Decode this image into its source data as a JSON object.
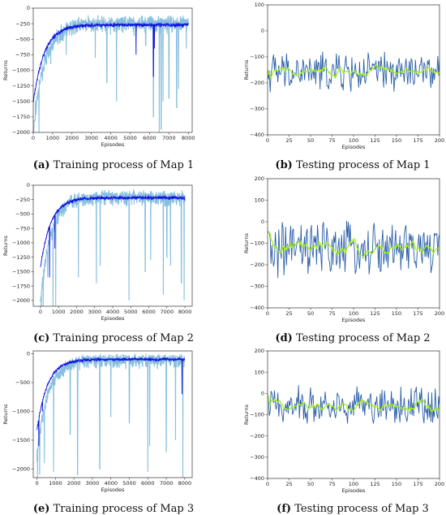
{
  "chart_data": [
    {
      "type": "line",
      "caption_letter": "(a)",
      "caption_text": " Training process of Map 1",
      "xlabel": "Episodes",
      "ylabel": "Returns",
      "xlim": [
        0,
        8200
      ],
      "ylim": [
        -2000,
        0
      ],
      "xticks": [
        0,
        1000,
        2000,
        3000,
        4000,
        5000,
        6000,
        7000,
        8000
      ],
      "yticks": [
        0,
        -250,
        -500,
        -750,
        -1000,
        -1250,
        -1500,
        -1750,
        -2000
      ],
      "episodes": 8000,
      "series": [
        {
          "role": "raw",
          "color": "#87bfe0",
          "start": -1900,
          "end": -150,
          "noise": 160,
          "dips": [
            [
              30,
              -1900
            ],
            [
              120,
              -1500
            ],
            [
              300,
              -2000
            ],
            [
              650,
              -900
            ],
            [
              900,
              -900
            ],
            [
              1700,
              -750
            ],
            [
              3200,
              -800
            ],
            [
              3800,
              -1200
            ],
            [
              4300,
              -1500
            ],
            [
              5200,
              -450
            ],
            [
              5800,
              -600
            ],
            [
              6200,
              -1750
            ],
            [
              6500,
              -2000
            ],
            [
              6600,
              -1950
            ],
            [
              6700,
              -1500
            ],
            [
              7000,
              -1450
            ],
            [
              7400,
              -1600
            ],
            [
              7500,
              -1300
            ],
            [
              7900,
              -650
            ]
          ]
        },
        {
          "role": "smoothed",
          "color": "#1010dd",
          "start": -1500,
          "end": -250,
          "noise": 60,
          "dips": [
            [
              5300,
              -750
            ],
            [
              6200,
              -1100
            ],
            [
              6250,
              -650
            ]
          ]
        }
      ]
    },
    {
      "type": "line",
      "caption_letter": "(b)",
      "caption_text": " Testing process of Map 1",
      "xlabel": "Episodes",
      "ylabel": "Returns",
      "xlim": [
        0,
        200
      ],
      "ylim": [
        -400,
        100
      ],
      "xticks": [
        0,
        25,
        50,
        75,
        100,
        125,
        150,
        175,
        200
      ],
      "yticks": [
        100,
        0,
        -100,
        -200,
        -300,
        -400
      ],
      "episodes": 200,
      "series": [
        {
          "role": "raw",
          "color": "#2b5fa8",
          "mean": -160,
          "amp": 65
        },
        {
          "role": "smoothed",
          "color": "#a2f21c",
          "mean": -160,
          "amp": 18
        }
      ]
    },
    {
      "type": "line",
      "caption_letter": "(c)",
      "caption_text": " Training process of Map 2",
      "xlabel": "Episodes",
      "ylabel": "Returns",
      "xlim": [
        -400,
        8400
      ],
      "ylim": [
        -2100,
        0
      ],
      "xticks": [
        0,
        1000,
        2000,
        3000,
        4000,
        5000,
        6000,
        7000,
        8000
      ],
      "yticks": [
        0,
        -250,
        -500,
        -750,
        -1000,
        -1250,
        -1500,
        -1750,
        -2000
      ],
      "episodes": 8000,
      "series": [
        {
          "role": "raw",
          "color": "#87bfe0",
          "start": -1900,
          "end": -120,
          "noise": 150,
          "dips": [
            [
              40,
              -2100
            ],
            [
              150,
              -2100
            ],
            [
              400,
              -1600
            ],
            [
              700,
              -2100
            ],
            [
              850,
              -2100
            ],
            [
              2100,
              -1600
            ],
            [
              3100,
              -1700
            ],
            [
              3300,
              -1400
            ],
            [
              4900,
              -2000
            ],
            [
              5800,
              -1500
            ],
            [
              6100,
              -1300
            ],
            [
              6800,
              -1900
            ],
            [
              7000,
              -1250
            ],
            [
              7200,
              -1400
            ],
            [
              7800,
              -1700
            ],
            [
              7950,
              -2000
            ]
          ]
        },
        {
          "role": "smoothed",
          "color": "#1010dd",
          "start": -1400,
          "end": -200,
          "noise": 55,
          "dips": [
            [
              500,
              -1600
            ],
            [
              800,
              -1100
            ]
          ]
        }
      ]
    },
    {
      "type": "line",
      "caption_letter": "(d)",
      "caption_text": " Testing process of Map 2",
      "xlabel": "Episodes",
      "ylabel": "Returns",
      "xlim": [
        0,
        200
      ],
      "ylim": [
        -400,
        200
      ],
      "xticks": [
        0,
        25,
        50,
        75,
        100,
        125,
        150,
        175,
        200
      ],
      "yticks": [
        200,
        100,
        0,
        -100,
        -200,
        -300,
        -400
      ],
      "episodes": 200,
      "series": [
        {
          "role": "raw",
          "color": "#2b5fa8",
          "mean": -130,
          "amp": 110
        },
        {
          "role": "smoothed",
          "color": "#a2f21c",
          "mean": -130,
          "amp": 28
        }
      ]
    },
    {
      "type": "line",
      "caption_letter": "(e)",
      "caption_text": " Training process of Map 3",
      "xlabel": "Episodes",
      "ylabel": "Returns",
      "xlim": [
        -200,
        8400
      ],
      "ylim": [
        -2150,
        50
      ],
      "xticks": [
        0,
        1000,
        2000,
        3000,
        4000,
        5000,
        6000,
        7000,
        8000
      ],
      "yticks": [
        0,
        -500,
        -1000,
        -1500,
        -2000
      ],
      "episodes": 8000,
      "series": [
        {
          "role": "raw",
          "color": "#87bfe0",
          "start": -1700,
          "end": -30,
          "noise": 140,
          "dips": [
            [
              30,
              -2150
            ],
            [
              150,
              -2100
            ],
            [
              400,
              -1900
            ],
            [
              900,
              -2050
            ],
            [
              1800,
              -1400
            ],
            [
              2200,
              -2100
            ],
            [
              3400,
              -2000
            ],
            [
              4000,
              -1100
            ],
            [
              5000,
              -1200
            ],
            [
              6000,
              -2050
            ],
            [
              6100,
              -1600
            ],
            [
              7000,
              -1700
            ],
            [
              7500,
              -1500
            ],
            [
              7900,
              -2150
            ]
          ]
        },
        {
          "role": "smoothed",
          "color": "#1010dd",
          "start": -1300,
          "end": -80,
          "noise": 50,
          "dips": [
            [
              100,
              -1600
            ],
            [
              300,
              -1000
            ],
            [
              7850,
              -700
            ]
          ]
        }
      ]
    },
    {
      "type": "line",
      "caption_letter": "(f)",
      "caption_text": " Testing process of Map 3",
      "xlabel": "Episodes",
      "ylabel": "Returns",
      "xlim": [
        0,
        200
      ],
      "ylim": [
        -400,
        200
      ],
      "xticks": [
        0,
        25,
        50,
        75,
        100,
        125,
        150,
        175,
        200
      ],
      "yticks": [
        200,
        100,
        0,
        -100,
        -200,
        -300,
        -400
      ],
      "episodes": 200,
      "series": [
        {
          "role": "raw",
          "color": "#2b5fa8",
          "mean": -55,
          "amp": 75
        },
        {
          "role": "smoothed",
          "color": "#a2f21c",
          "mean": -55,
          "amp": 15
        }
      ]
    }
  ]
}
